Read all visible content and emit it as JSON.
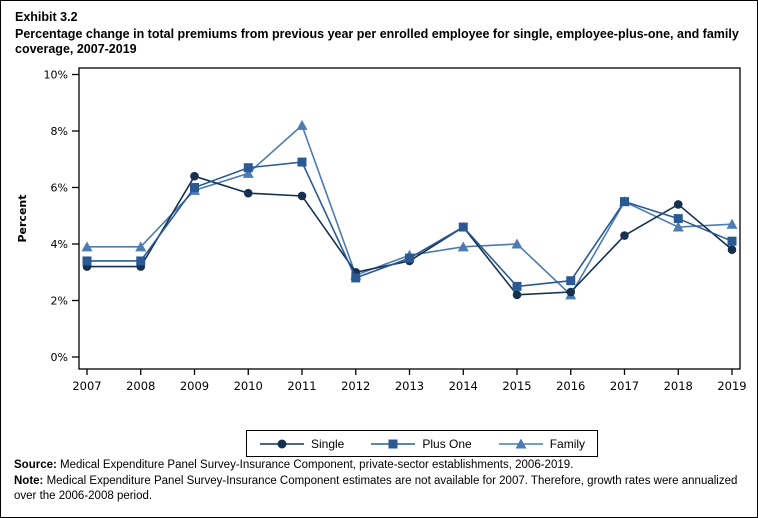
{
  "header": {
    "exhibit": "Exhibit 3.2",
    "title": "Percentage change in total premiums from previous year per enrolled employee for single, employee-plus-one, and family coverage, 2007-2019"
  },
  "chart_data": {
    "type": "line",
    "x": [
      2007,
      2008,
      2009,
      2010,
      2011,
      2012,
      2013,
      2014,
      2015,
      2016,
      2017,
      2018,
      2019
    ],
    "series": [
      {
        "name": "Single",
        "marker": "circle",
        "color": "#16304f",
        "values": [
          3.2,
          3.2,
          6.4,
          5.8,
          5.7,
          3.0,
          3.4,
          4.6,
          2.2,
          2.3,
          4.3,
          5.4,
          3.8
        ]
      },
      {
        "name": "Plus One",
        "marker": "square",
        "color": "#2a5a94",
        "values": [
          3.4,
          3.4,
          6.0,
          6.7,
          6.9,
          2.8,
          3.5,
          4.6,
          2.5,
          2.7,
          5.5,
          4.9,
          4.1
        ]
      },
      {
        "name": "Family",
        "marker": "triangle",
        "color": "#4d7cb2",
        "values": [
          3.9,
          3.9,
          5.9,
          6.5,
          8.2,
          2.9,
          3.6,
          3.9,
          4.0,
          2.2,
          5.5,
          4.6,
          4.7
        ]
      }
    ],
    "ylabel": "Percent",
    "ylim": [
      0,
      10
    ],
    "yticks": [
      0,
      2,
      4,
      6,
      8,
      10
    ],
    "ytick_suffix": "%",
    "grid": false,
    "legend_position": "bottom-center",
    "axis_color": "#000000"
  },
  "footer": {
    "source_label": "Source:",
    "source_text": " Medical Expenditure Panel Survey-Insurance Component, private-sector establishments, 2006-2019.",
    "note_label": "Note:",
    "note_text": " Medical Expenditure Panel Survey-Insurance Component estimates are not available for 2007. Therefore, growth rates were annualized over the 2006-2008 period."
  }
}
